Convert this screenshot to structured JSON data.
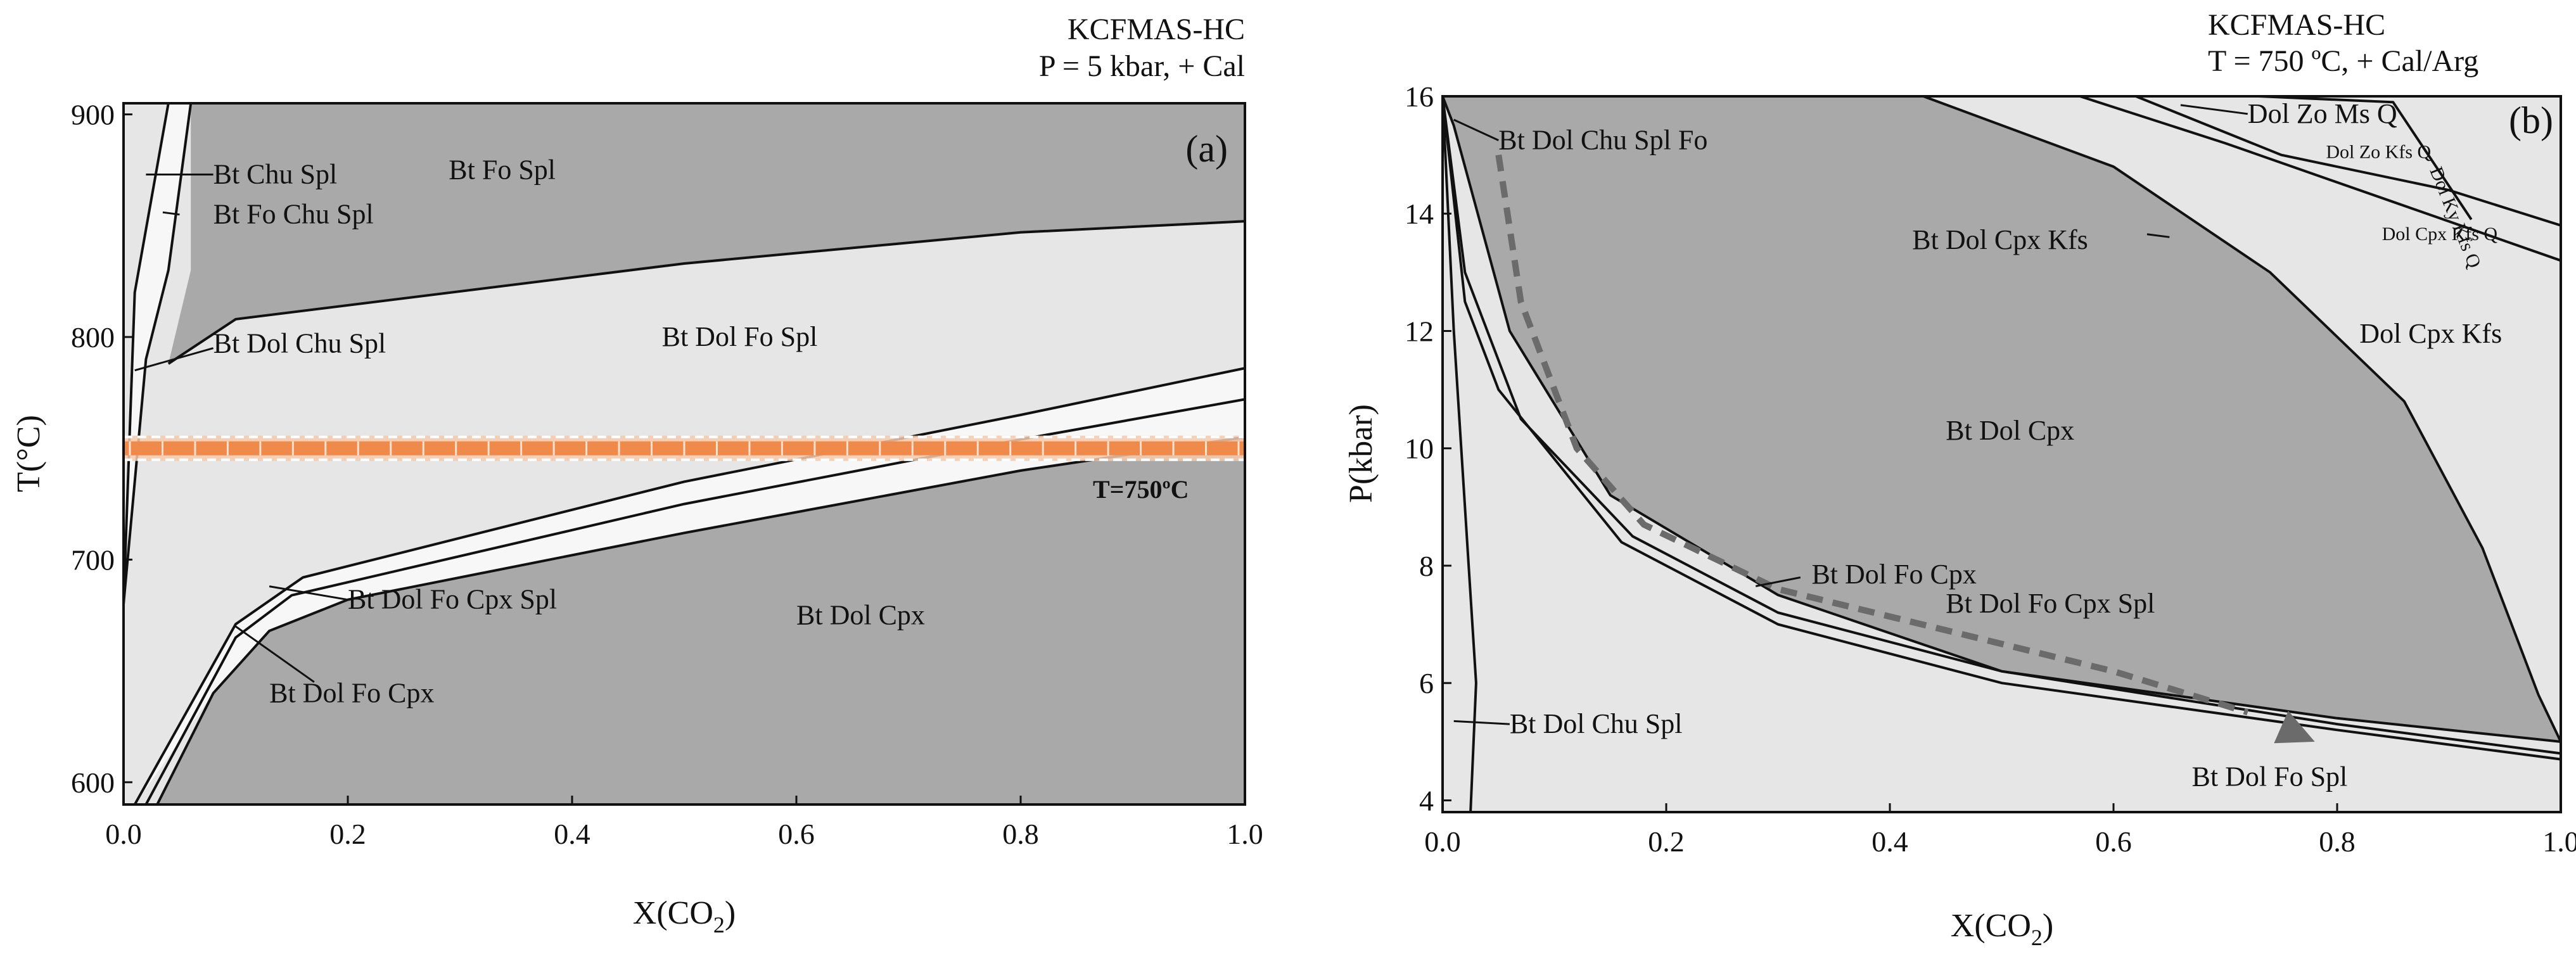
{
  "colors": {
    "dark_field": "#a9a9a9",
    "light_field": "#e6e6e6",
    "band_field": "#f7f7f7",
    "isotherm": "#f08a4b",
    "path": "#6b6b6b"
  },
  "chart_data": [
    {
      "panel": "(a)",
      "type": "diagram",
      "title_lines": [
        "KCFMAS-HC",
        "P = 5 kbar,  + Cal"
      ],
      "xlabel": "X(CO",
      "xlabel_sub": "2",
      "xlabel_end": ")",
      "ylabel": "T(°C)",
      "xlim": [
        0,
        1.0
      ],
      "ylim": [
        590,
        905
      ],
      "xticks": [
        0.0,
        0.2,
        0.4,
        0.6,
        0.8,
        1.0
      ],
      "xtick_labels": [
        "0.0",
        "0.2",
        "0.4",
        "0.6",
        "0.8",
        "1.0"
      ],
      "yticks": [
        600,
        700,
        800,
        900
      ],
      "ytick_labels": [
        "600",
        "700",
        "800",
        "900"
      ],
      "isotherm": {
        "T": 750,
        "label": "T=750ºC"
      },
      "fields": [
        {
          "name": "top_dark",
          "shade": "dark",
          "poly": [
            [
              0.04,
              905
            ],
            [
              1.0,
              905
            ],
            [
              1.0,
              852
            ],
            [
              0.8,
              847
            ],
            [
              0.5,
              833
            ],
            [
              0.1,
              808
            ],
            [
              0.04,
              788
            ],
            [
              0.06,
              830
            ],
            [
              0.06,
              905
            ]
          ]
        },
        {
          "name": "bottom_dark",
          "shade": "dark",
          "poly": [
            [
              0.03,
              590
            ],
            [
              1.0,
              590
            ],
            [
              1.0,
              755
            ],
            [
              0.8,
              740
            ],
            [
              0.5,
              712
            ],
            [
              0.2,
              682
            ],
            [
              0.13,
              668
            ],
            [
              0.08,
              640
            ]
          ]
        },
        {
          "name": "band",
          "shade": "band",
          "poly": [
            [
              0.01,
              590
            ],
            [
              0.08,
              640
            ],
            [
              0.13,
              668
            ],
            [
              0.2,
              682
            ],
            [
              0.5,
              712
            ],
            [
              0.8,
              740
            ],
            [
              1.0,
              755
            ],
            [
              1.0,
              786
            ],
            [
              0.8,
              765
            ],
            [
              0.5,
              735
            ],
            [
              0.16,
              692
            ],
            [
              0.1,
              671
            ]
          ]
        },
        {
          "name": "chu_wedge",
          "shade": "band",
          "poly": [
            [
              0.0,
              680
            ],
            [
              0.02,
              790
            ],
            [
              0.04,
              830
            ],
            [
              0.06,
              905
            ],
            [
              0.04,
              905
            ],
            [
              0.01,
              820
            ]
          ]
        }
      ],
      "boundaries": [
        [
          [
            0.0,
            680
          ],
          [
            0.0,
            905
          ]
        ],
        [
          [
            0.0,
            680
          ],
          [
            0.02,
            790
          ],
          [
            0.04,
            830
          ],
          [
            0.06,
            905
          ]
        ],
        [
          [
            0.0,
            680
          ],
          [
            0.01,
            820
          ],
          [
            0.04,
            905
          ]
        ],
        [
          [
            0.04,
            788
          ],
          [
            0.1,
            808
          ],
          [
            0.5,
            833
          ],
          [
            0.8,
            847
          ],
          [
            1.0,
            852
          ]
        ],
        [
          [
            0.01,
            590
          ],
          [
            0.1,
            671
          ],
          [
            0.16,
            692
          ],
          [
            0.5,
            735
          ],
          [
            0.8,
            765
          ],
          [
            1.0,
            786
          ]
        ],
        [
          [
            0.02,
            590
          ],
          [
            0.1,
            665
          ],
          [
            0.15,
            684
          ],
          [
            0.5,
            725
          ],
          [
            0.8,
            754
          ],
          [
            1.0,
            772
          ]
        ],
        [
          [
            0.03,
            590
          ],
          [
            0.08,
            640
          ],
          [
            0.13,
            668
          ],
          [
            0.2,
            682
          ],
          [
            0.5,
            712
          ],
          [
            0.8,
            740
          ],
          [
            1.0,
            755
          ]
        ]
      ],
      "labels": [
        {
          "text": "Bt Chu Spl",
          "x": 0.08,
          "y": 873
        },
        {
          "text": "Bt Fo Chu Spl",
          "x": 0.08,
          "y": 855
        },
        {
          "text": "Bt Fo Spl",
          "x": 0.29,
          "y": 875
        },
        {
          "text": "Bt Dol Chu Spl",
          "x": 0.08,
          "y": 797
        },
        {
          "text": "Bt Dol Fo Spl",
          "x": 0.48,
          "y": 800
        },
        {
          "text": "Bt Dol Fo Cpx Spl",
          "x": 0.2,
          "y": 682
        },
        {
          "text": "Bt Dol Cpx",
          "x": 0.6,
          "y": 675
        },
        {
          "text": "Bt Dol Fo Cpx",
          "x": 0.13,
          "y": 640
        }
      ],
      "leaders": [
        [
          [
            0.02,
            873
          ],
          [
            0.08,
            873
          ]
        ],
        [
          [
            0.035,
            856
          ],
          [
            0.05,
            855
          ]
        ],
        [
          [
            0.01,
            785
          ],
          [
            0.08,
            795
          ]
        ],
        [
          [
            0.13,
            688
          ],
          [
            0.2,
            682
          ]
        ],
        [
          [
            0.1,
            670
          ],
          [
            0.17,
            645
          ]
        ]
      ]
    },
    {
      "panel": "(b)",
      "type": "diagram",
      "title_lines": [
        "KCFMAS-HC",
        "T = 750 ºC,  + Cal/Arg"
      ],
      "xlabel": "X(CO",
      "xlabel_sub": "2",
      "xlabel_end": ")",
      "ylabel": "P(kbar)",
      "xlim": [
        0,
        1.0
      ],
      "ylim": [
        3.8,
        16
      ],
      "xticks": [
        0.0,
        0.2,
        0.4,
        0.6,
        0.8,
        1.0
      ],
      "xtick_labels": [
        "0.0",
        "0.2",
        "0.4",
        "0.6",
        "0.8",
        "1.0"
      ],
      "yticks": [
        4,
        6,
        8,
        10,
        12,
        14,
        16
      ],
      "ytick_labels": [
        "4",
        "6",
        "8",
        "10",
        "12",
        "14",
        "16"
      ],
      "fields": [
        {
          "name": "dol_cpx_dark",
          "shade": "dark",
          "poly": [
            [
              0.0,
              16
            ],
            [
              0.43,
              16
            ],
            [
              0.6,
              14.8
            ],
            [
              0.74,
              13
            ],
            [
              0.86,
              10.8
            ],
            [
              0.93,
              8.3
            ],
            [
              0.98,
              5.8
            ],
            [
              1.0,
              5.0
            ],
            [
              0.8,
              5.4
            ],
            [
              0.5,
              6.2
            ],
            [
              0.3,
              7.5
            ],
            [
              0.15,
              9.2
            ],
            [
              0.06,
              12
            ],
            [
              0.01,
              15.5
            ]
          ]
        },
        {
          "name": "kfs_light",
          "shade": "light",
          "poly": [
            [
              0.57,
              16
            ],
            [
              1.0,
              16
            ],
            [
              1.0,
              13.2
            ],
            [
              0.85,
              14.2
            ],
            [
              0.7,
              15.2
            ]
          ]
        }
      ],
      "boundaries": [
        [
          [
            0.0,
            3.8
          ],
          [
            0.0,
            16
          ]
        ],
        [
          [
            0.0,
            16
          ],
          [
            0.01,
            12
          ],
          [
            0.02,
            9
          ],
          [
            0.03,
            6
          ],
          [
            0.025,
            3.8
          ]
        ],
        [
          [
            0.0,
            16
          ],
          [
            0.02,
            13
          ],
          [
            0.07,
            10.5
          ],
          [
            0.17,
            8.5
          ],
          [
            0.3,
            7.2
          ],
          [
            0.5,
            6.2
          ],
          [
            0.8,
            5.3
          ],
          [
            1.0,
            4.8
          ]
        ],
        [
          [
            0.0,
            16
          ],
          [
            0.01,
            15.5
          ],
          [
            0.06,
            12
          ],
          [
            0.15,
            9.2
          ],
          [
            0.3,
            7.5
          ],
          [
            0.5,
            6.2
          ],
          [
            0.8,
            5.4
          ],
          [
            1.0,
            5.0
          ]
        ],
        [
          [
            0.0,
            16
          ],
          [
            0.02,
            12.5
          ],
          [
            0.05,
            11
          ],
          [
            0.16,
            8.4
          ],
          [
            0.3,
            7.0
          ],
          [
            0.5,
            6.0
          ],
          [
            0.8,
            5.2
          ],
          [
            1.0,
            4.7
          ]
        ],
        [
          [
            0.43,
            16
          ],
          [
            0.6,
            14.8
          ],
          [
            0.74,
            13
          ],
          [
            0.86,
            10.8
          ],
          [
            0.93,
            8.3
          ],
          [
            0.98,
            5.8
          ],
          [
            1.0,
            5.0
          ]
        ],
        [
          [
            0.57,
            16
          ],
          [
            0.7,
            15.2
          ],
          [
            0.85,
            14.2
          ],
          [
            1.0,
            13.2
          ]
        ],
        [
          [
            0.62,
            16
          ],
          [
            0.75,
            15
          ],
          [
            0.9,
            14.4
          ],
          [
            1.0,
            13.8
          ]
        ],
        [
          [
            0.73,
            16
          ],
          [
            0.85,
            15.9
          ],
          [
            0.92,
            13.9
          ]
        ],
        [
          [
            0.64,
            16
          ],
          [
            0.7,
            16
          ]
        ]
      ],
      "path": [
        [
          0.05,
          15
        ],
        [
          0.07,
          12.5
        ],
        [
          0.12,
          10
        ],
        [
          0.18,
          8.7
        ],
        [
          0.3,
          7.6
        ],
        [
          0.45,
          6.9
        ],
        [
          0.6,
          6.2
        ],
        [
          0.72,
          5.5
        ],
        [
          0.78,
          5.0
        ]
      ],
      "labels": [
        {
          "text": "Bt Dol Chu Spl Fo",
          "x": 0.05,
          "y": 15.25,
          "size": "normal"
        },
        {
          "text": "Dol Zo Ms Q",
          "x": 0.72,
          "y": 15.7,
          "size": "normal"
        },
        {
          "text": "Dol Zo Kfs Q",
          "x": 0.79,
          "y": 15.1,
          "size": "small"
        },
        {
          "text": "Dol Ky Kfs Q",
          "x": 0.89,
          "y": 14.8,
          "size": "small",
          "rotate": 68
        },
        {
          "text": "Dol Cpx Kfs Q",
          "x": 0.84,
          "y": 13.7,
          "size": "small"
        },
        {
          "text": "Bt Dol Cpx Kfs",
          "x": 0.42,
          "y": 13.55,
          "size": "normal"
        },
        {
          "text": "Dol Cpx Kfs",
          "x": 0.82,
          "y": 11.95,
          "size": "normal"
        },
        {
          "text": "Bt Dol Cpx",
          "x": 0.45,
          "y": 10.3,
          "size": "normal"
        },
        {
          "text": "Bt Dol Fo Cpx",
          "x": 0.33,
          "y": 7.85,
          "size": "normal"
        },
        {
          "text": "Bt Dol Fo Cpx Spl",
          "x": 0.45,
          "y": 7.35,
          "size": "normal"
        },
        {
          "text": "Bt Dol Chu Spl",
          "x": 0.06,
          "y": 5.3,
          "size": "normal"
        },
        {
          "text": "Bt Dol Fo Spl",
          "x": 0.67,
          "y": 4.4,
          "size": "normal"
        }
      ],
      "leaders": [
        [
          [
            0.01,
            15.6
          ],
          [
            0.05,
            15.25
          ]
        ],
        [
          [
            0.72,
            15.7
          ],
          [
            0.66,
            15.85
          ]
        ],
        [
          [
            0.65,
            13.6
          ],
          [
            0.63,
            13.65
          ]
        ],
        [
          [
            0.28,
            7.65
          ],
          [
            0.32,
            7.8
          ]
        ],
        [
          [
            0.01,
            5.35
          ],
          [
            0.06,
            5.3
          ]
        ]
      ]
    }
  ]
}
